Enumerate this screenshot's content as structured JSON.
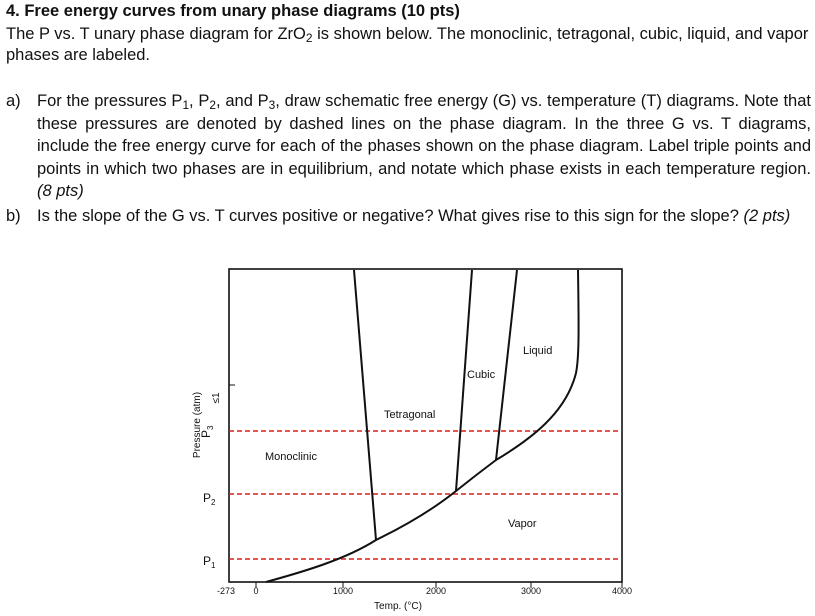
{
  "heading": "4. Free energy curves from unary phase diagrams (10 pts)",
  "intro": {
    "before": "The P vs. T unary phase diagram for ZrO",
    "sub": "2",
    "after": " is shown below. The monoclinic, tetragonal, cubic, liquid, and vapor phases are labeled."
  },
  "question_a": {
    "label": "a)",
    "t1": "For the pressures P",
    "s1": "1",
    "t2": ", P",
    "s2": "2",
    "t3": ", and P",
    "s3": "3",
    "t4": ", draw schematic free energy (G) vs. temperature (T) diagrams. Note that these pressures are denoted by dashed lines on the phase diagram. In the three G vs. T diagrams, include the free energy curve for each of the phases shown on the phase diagram. Label triple points and points in which two phases are in equilibrium, and notate which phase exists in each temperature region.",
    "points": "(8 pts)"
  },
  "question_b": {
    "label": "b)",
    "text": "Is the slope of the G vs. T curves positive or negative? What gives rise to this sign for the slope?",
    "points": "(2 pts)"
  },
  "figure": {
    "ylabel": "Pressure (atm)",
    "xlabel": "Temp. (°C)",
    "x_ticks": [
      "-273",
      "0",
      "1000",
      "2000",
      "3000",
      "4000"
    ],
    "y_marker": "≤1",
    "pressure_labels": {
      "p1": "P",
      "p1_sub": "1",
      "p2": "P",
      "p2_sub": "2",
      "p3": "P",
      "p3_sub": "3"
    },
    "phases": {
      "monoclinic": "Monoclinic",
      "tetragonal": "Tetragonal",
      "cubic": "Cubic",
      "liquid": "Liquid",
      "vapor": "Vapor"
    },
    "dash_color": "#e01b1b"
  }
}
